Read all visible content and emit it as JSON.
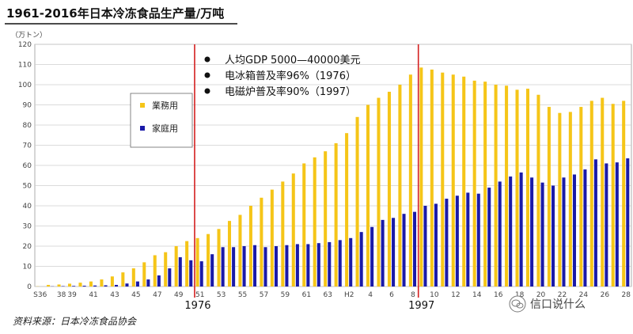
{
  "chart_data": {
    "type": "bar",
    "title": "1961-2016年日本冷冻食品生产量/万吨",
    "unit_label": "（万トン）",
    "ylim": [
      0,
      120
    ],
    "yticks": [
      0,
      10,
      20,
      30,
      40,
      50,
      60,
      70,
      80,
      90,
      100,
      110,
      120
    ],
    "grid": true,
    "legend_placement": "upper-left",
    "xtick_labels": [
      "S36",
      "38",
      "39",
      "41",
      "43",
      "45",
      "47",
      "49",
      "51",
      "53",
      "55",
      "57",
      "59",
      "61",
      "63",
      "H2",
      "4",
      "6",
      "8",
      "10",
      "12",
      "14",
      "16",
      "18",
      "20",
      "22",
      "24",
      "26",
      "28"
    ],
    "xtick_index": [
      0,
      2,
      3,
      5,
      7,
      9,
      11,
      13,
      15,
      17,
      19,
      21,
      23,
      25,
      27,
      29,
      31,
      33,
      35,
      37,
      39,
      41,
      43,
      45,
      47,
      49,
      51,
      53,
      55
    ],
    "series": [
      {
        "name": "業務用",
        "color": "#f5c518",
        "values": [
          0.1,
          0.8,
          1.0,
          1.4,
          1.9,
          2.5,
          3.5,
          5.0,
          7.0,
          9.0,
          12.0,
          15.5,
          17.0,
          20.0,
          22.5,
          24.0,
          26.0,
          28.5,
          32.5,
          35.5,
          40.0,
          44.0,
          48.0,
          52.0,
          56.0,
          61.0,
          64.0,
          67.0,
          71.0,
          76.0,
          84.0,
          90.0,
          93.5,
          96.5,
          100.0,
          105.0,
          108.5,
          107.5,
          106.0,
          105.0,
          104.0,
          102.0,
          101.5,
          100.0,
          99.5,
          97.5,
          98.0,
          95.0,
          89.0,
          86.0,
          86.5,
          89.0,
          92.0,
          93.5,
          90.5,
          92.0
        ]
      },
      {
        "name": "家庭用",
        "color": "#1a1aa8",
        "values": [
          0.0,
          0.1,
          0.2,
          0.3,
          0.4,
          0.5,
          0.6,
          0.8,
          1.5,
          2.5,
          3.5,
          5.5,
          9.0,
          14.5,
          13.0,
          12.5,
          16.0,
          19.5,
          19.5,
          20.0,
          20.5,
          19.5,
          20.0,
          20.5,
          21.0,
          21.0,
          21.5,
          22.0,
          23.0,
          24.0,
          27.0,
          29.5,
          33.0,
          34.0,
          36.0,
          37.0,
          40.0,
          41.0,
          43.5,
          45.0,
          46.5,
          46.0,
          49.0,
          52.0,
          54.5,
          56.5,
          54.0,
          51.5,
          50.0,
          54.0,
          55.5,
          58.0,
          63.0,
          61.0,
          61.5,
          63.5
        ]
      }
    ],
    "reference_lines": [
      {
        "index": 15,
        "label": "1976",
        "color": "#d42020"
      },
      {
        "index": 36,
        "label": "1997",
        "color": "#d42020"
      }
    ],
    "annotations": [
      "人均GDP 5000—40000美元",
      "电冰箱普及率96%（1976）",
      "电磁炉普及率90%（1997）"
    ],
    "source": "资料来源：日本冷冻食品协会"
  },
  "watermark": {
    "icon": "wechat-icon",
    "text": "信口说什么"
  }
}
